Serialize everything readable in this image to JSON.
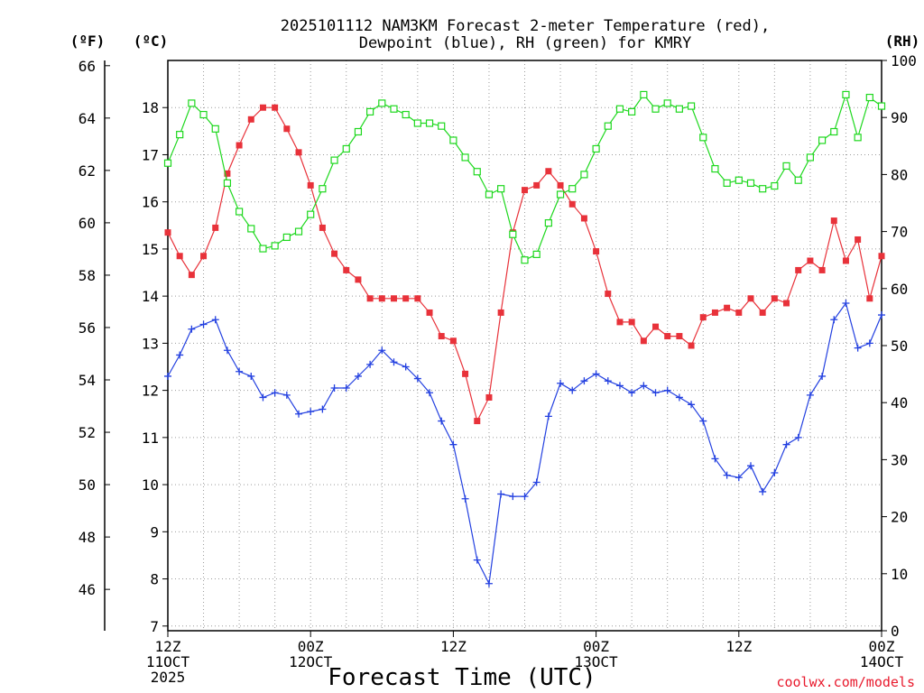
{
  "chart_data": {
    "type": "line",
    "title": [
      "2025101112 NAM3KM Forecast 2-meter Temperature (red),",
      "Dewpoint (blue), RH (green) for KMRY"
    ],
    "xlabel": "Forecast Time (UTC)",
    "credit": "coolwx.com/models",
    "units": {
      "left_outer": "(ºF)",
      "left_inner": "(ºC)",
      "right": "(RH)"
    },
    "colors": {
      "temperature": "#e8323a",
      "dewpoint": "#2340e0",
      "rh": "#1ed81e",
      "grid": "#9a9a9a"
    },
    "x_hours": [
      0,
      60
    ],
    "x_ticks": [
      {
        "hour": 0,
        "lines": [
          "12Z",
          "11OCT",
          "2025"
        ]
      },
      {
        "hour": 12,
        "lines": [
          "00Z",
          "12OCT"
        ]
      },
      {
        "hour": 24,
        "lines": [
          "12Z"
        ]
      },
      {
        "hour": 36,
        "lines": [
          "00Z",
          "13OCT"
        ]
      },
      {
        "hour": 48,
        "lines": [
          "12Z"
        ]
      },
      {
        "hour": 60,
        "lines": [
          "00Z",
          "14OCT"
        ]
      }
    ],
    "celsius_axis": {
      "range": [
        6.9,
        19.0
      ],
      "ticks": [
        7,
        8,
        9,
        10,
        11,
        12,
        13,
        14,
        15,
        16,
        17,
        18
      ],
      "grid": true
    },
    "fahrenheit_axis": {
      "ticks": [
        46,
        48,
        50,
        52,
        54,
        56,
        58,
        60,
        62,
        64,
        66
      ]
    },
    "rh_axis": {
      "range": [
        0,
        100
      ],
      "ticks": [
        0,
        10,
        20,
        30,
        40,
        50,
        60,
        70,
        80,
        90,
        100
      ]
    },
    "series": [
      {
        "name": "Temperature",
        "unit": "°C",
        "marker": "filled-square",
        "color": "#e8323a",
        "hours": [
          0,
          1,
          2,
          3,
          4,
          5,
          6,
          7,
          8,
          9,
          10,
          11,
          12,
          13,
          14,
          15,
          16,
          17,
          18,
          19,
          20,
          21,
          22,
          23,
          24,
          25,
          26,
          27,
          28,
          29,
          30,
          31,
          32,
          33,
          34,
          35,
          36,
          37,
          38,
          39,
          40,
          41,
          42,
          43,
          44,
          45,
          46,
          47,
          48,
          49,
          50,
          51,
          52,
          53,
          54,
          55,
          56,
          57,
          58,
          59,
          60
        ],
        "values": [
          15.35,
          14.85,
          14.45,
          14.85,
          15.45,
          16.6,
          17.2,
          17.75,
          18.0,
          18.0,
          17.55,
          17.05,
          16.35,
          15.45,
          14.9,
          14.55,
          14.35,
          13.95,
          13.95,
          13.95,
          13.95,
          13.95,
          13.65,
          13.15,
          13.05,
          12.35,
          11.35,
          11.85,
          13.65,
          15.35,
          16.25,
          16.35,
          16.65,
          16.35,
          15.95,
          15.65,
          14.95,
          14.05,
          13.45,
          13.45,
          13.05,
          13.35,
          13.15,
          13.15,
          12.95,
          13.55,
          13.65,
          13.75,
          13.65,
          13.95,
          13.65,
          13.95,
          13.85,
          14.55,
          14.75,
          14.55,
          15.6,
          14.75,
          15.2,
          13.95,
          14.85
        ]
      },
      {
        "name": "Dewpoint",
        "unit": "°C",
        "marker": "plus",
        "color": "#2340e0",
        "hours": [
          0,
          1,
          2,
          3,
          4,
          5,
          6,
          7,
          8,
          9,
          10,
          11,
          12,
          13,
          14,
          15,
          16,
          17,
          18,
          19,
          20,
          21,
          22,
          23,
          24,
          25,
          26,
          27,
          28,
          29,
          30,
          31,
          32,
          33,
          34,
          35,
          36,
          37,
          38,
          39,
          40,
          41,
          42,
          43,
          44,
          45,
          46,
          47,
          48,
          49,
          50,
          51,
          52,
          53,
          54,
          55,
          56,
          57,
          58,
          59,
          60
        ],
        "values": [
          12.3,
          12.75,
          13.3,
          13.4,
          13.5,
          12.85,
          12.4,
          12.3,
          11.85,
          11.95,
          11.9,
          11.5,
          11.55,
          11.6,
          12.05,
          12.05,
          12.3,
          12.55,
          12.85,
          12.6,
          12.5,
          12.25,
          11.95,
          11.35,
          10.85,
          9.7,
          8.4,
          7.9,
          9.8,
          9.75,
          9.75,
          10.05,
          11.45,
          12.15,
          12.0,
          12.2,
          12.35,
          12.2,
          12.1,
          11.95,
          12.1,
          11.95,
          12.0,
          11.85,
          11.7,
          11.35,
          10.55,
          10.2,
          10.15,
          10.4,
          9.85,
          10.25,
          10.85,
          11.0,
          11.9,
          12.3,
          13.5,
          13.85,
          12.9,
          13.0,
          13.6
        ]
      },
      {
        "name": "RH",
        "unit": "%",
        "marker": "open-square",
        "color": "#1ed81e",
        "hours": [
          0,
          1,
          2,
          3,
          4,
          5,
          6,
          7,
          8,
          9,
          10,
          11,
          12,
          13,
          14,
          15,
          16,
          17,
          18,
          19,
          20,
          21,
          22,
          23,
          24,
          25,
          26,
          27,
          28,
          29,
          30,
          31,
          32,
          33,
          34,
          35,
          36,
          37,
          38,
          39,
          40,
          41,
          42,
          43,
          44,
          45,
          46,
          47,
          48,
          49,
          50,
          51,
          52,
          53,
          54,
          55,
          56,
          57,
          58,
          59,
          60
        ],
        "values": [
          82,
          87,
          92.5,
          90.5,
          88,
          78.5,
          73.5,
          70.5,
          67,
          67.5,
          69,
          70,
          73,
          77.5,
          82.5,
          84.5,
          87.5,
          91,
          92.5,
          91.5,
          90.5,
          89,
          89,
          88.5,
          86,
          83,
          80.5,
          76.5,
          77.5,
          69.5,
          65,
          66,
          71.5,
          76.5,
          77.5,
          80,
          84.5,
          88.5,
          91.5,
          91,
          94,
          91.5,
          92.5,
          91.5,
          92,
          86.5,
          81,
          78.5,
          79,
          78.5,
          77.5,
          78,
          81.5,
          79,
          83,
          86,
          87.5,
          94,
          86.5,
          93.5,
          92
        ]
      }
    ]
  }
}
